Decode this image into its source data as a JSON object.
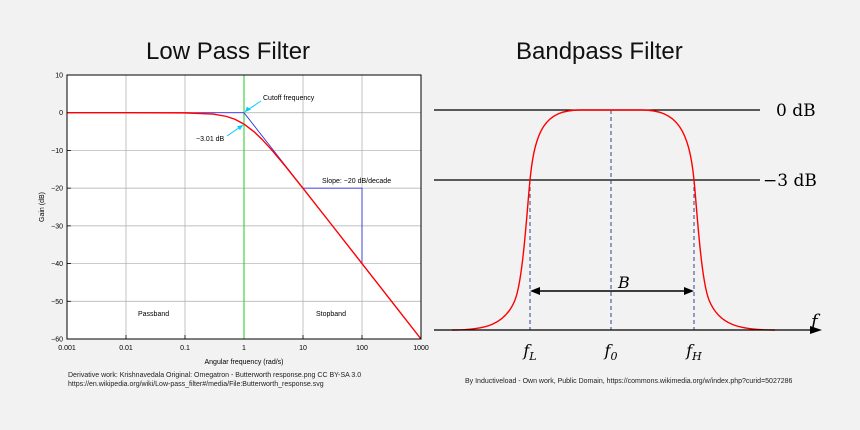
{
  "chart_data": [
    {
      "type": "line",
      "title": "Low Pass Filter",
      "xlabel": "Angular frequency (rad/s)",
      "ylabel": "Gain (dB)",
      "xscale": "log",
      "xlim": [
        0.001,
        1000
      ],
      "ylim": [
        -60,
        10
      ],
      "x_ticks": [
        0.001,
        0.01,
        0.1,
        1,
        10,
        100,
        1000
      ],
      "x_tick_labels": [
        "0.001",
        "0.01",
        "0.1",
        "1",
        "10",
        "100",
        "1000"
      ],
      "y_ticks": [
        10,
        0,
        -10,
        -20,
        -30,
        -40,
        -50,
        -60
      ],
      "y_tick_labels": [
        "10",
        "0",
        "−10",
        "−20",
        "−30",
        "−40",
        "−50",
        "−60"
      ],
      "grid": true,
      "series": [
        {
          "name": "",
          "color": "#ff0000",
          "x": [
            0.001,
            0.01,
            0.1,
            0.3,
            0.5,
            0.7,
            1,
            1.5,
            2,
            3,
            5,
            10,
            30,
            100,
            300,
            1000
          ],
          "y": [
            0,
            0,
            -0.04,
            -0.37,
            -0.97,
            -1.73,
            -3.01,
            -5.12,
            -6.99,
            -10,
            -14.15,
            -20.04,
            -29.54,
            -40,
            -49.54,
            -60
          ]
        }
      ],
      "asymptote": {
        "color": "#3333dd",
        "x": [
          0.001,
          1,
          1000
        ],
        "y": [
          0,
          0,
          -60
        ]
      },
      "cutoff_line": {
        "x": 1,
        "color": "#22cc22"
      },
      "slope_triangle": {
        "x": [
          10,
          100
        ],
        "y": [
          -20,
          -40
        ],
        "color": "#3333dd"
      },
      "annotations": {
        "cutoff": "Cutoff frequency",
        "db3": "−3.01 dB",
        "slope": "Slope: −20 dB/decade",
        "passband": "Passband",
        "stopband": "Stopband"
      },
      "annotation_arrow_color": "#00ccff"
    },
    {
      "type": "line",
      "title": "Bandpass Filter",
      "labels": {
        "zero_db": "0 dB",
        "minus3_db": "−3 dB",
        "f": "f",
        "B": "B",
        "fL": "f",
        "fL_sub": "L",
        "f0": "f",
        "f0_sub": "0",
        "fH": "f",
        "fH_sub": "H"
      },
      "curve_color": "#ff0000"
    }
  ],
  "credits": {
    "left_line1": "Derivative work: Krishnavedala Original: Omegatron - Butterworth response.png CC BY-SA 3.0",
    "left_line2": "https://en.wikipedia.org/wiki/Low-pass_filter#/media/File:Butterworth_response.svg",
    "right": "By Inductiveload - Own work, Public Domain, https://commons.wikimedia.org/w/index.php?curid=5027286"
  }
}
